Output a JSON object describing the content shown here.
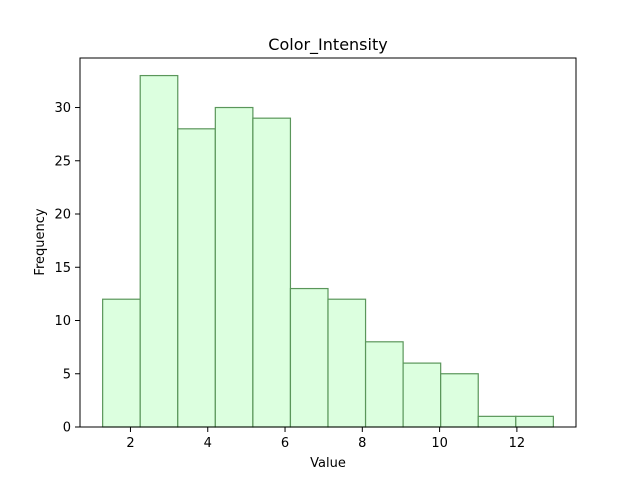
{
  "chart_data": {
    "type": "bar",
    "title": "Color_Intensity",
    "xlabel": "Value",
    "ylabel": "Frequency",
    "bin_edges": [
      1.28,
      2.252,
      3.224,
      4.196,
      5.168,
      6.14,
      7.112,
      8.084,
      9.056,
      10.028,
      11.0,
      11.972,
      12.944
    ],
    "values": [
      12,
      33,
      28,
      30,
      29,
      13,
      12,
      8,
      6,
      5,
      1,
      1
    ],
    "xlim": [
      0.694,
      13.53
    ],
    "ylim": [
      0,
      34.65
    ],
    "xticks": [
      2,
      4,
      6,
      8,
      10,
      12
    ],
    "yticks": [
      0,
      5,
      10,
      15,
      20,
      25,
      30
    ],
    "bar_fill": "#dcffdf",
    "bar_edge": "#5a965a",
    "grid": false
  }
}
